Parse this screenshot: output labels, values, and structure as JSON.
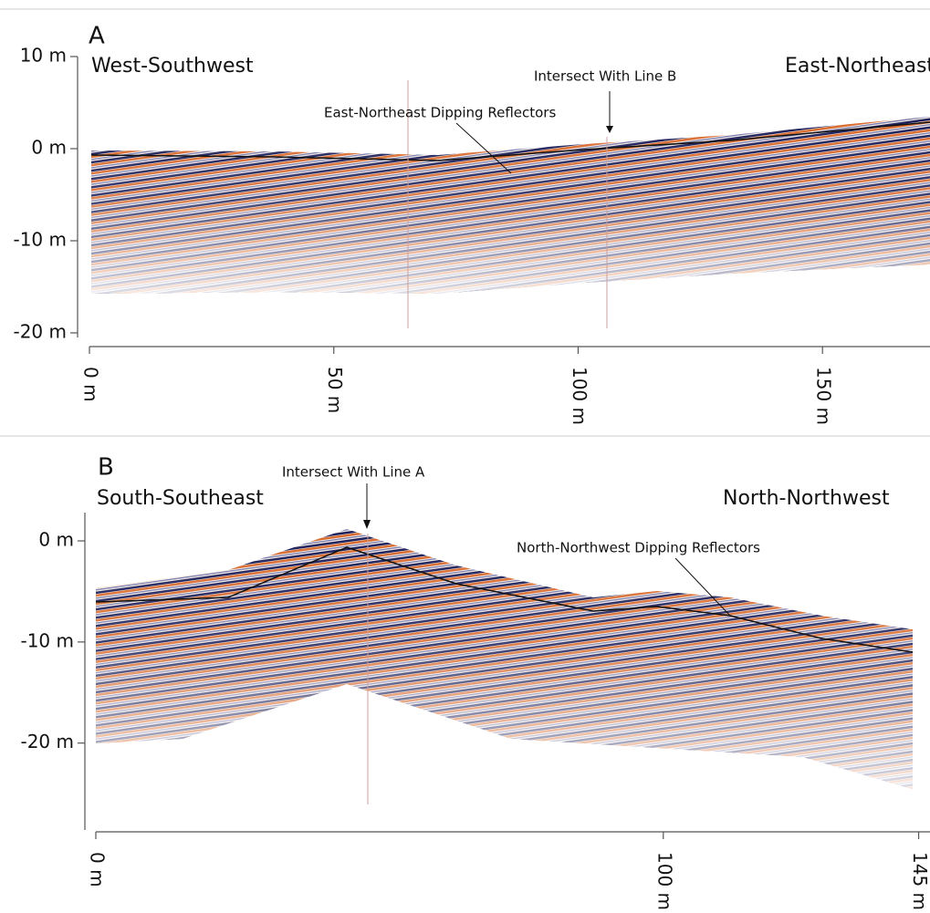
{
  "chart_data": [
    {
      "type": "radargram",
      "panel_label": "A",
      "left_direction": "West-Southwest",
      "right_direction": "East-Northeast",
      "annotations": [
        "Intersect With Line B",
        "East-Northeast Dipping Reflectors"
      ],
      "xlim": [
        0,
        172
      ],
      "ylim": [
        -20.5,
        10
      ],
      "xticks": [
        {
          "value": 0,
          "label": "0 m"
        },
        {
          "value": 50,
          "label": "50 m"
        },
        {
          "value": 100,
          "label": "100 m"
        },
        {
          "value": 150,
          "label": "150 m"
        }
      ],
      "yticks": [
        {
          "value": 10,
          "label": "10 m"
        },
        {
          "value": 0,
          "label": "0 m"
        },
        {
          "value": -10,
          "label": "-10 m"
        },
        {
          "value": -20,
          "label": "-20 m"
        }
      ]
    },
    {
      "type": "radargram",
      "panel_label": "B",
      "left_direction": "South-Southeast",
      "right_direction": "North-Northwest",
      "annotations": [
        "Intersect With Line A",
        "North-Northwest Dipping Reflectors"
      ],
      "xlim": [
        0,
        147
      ],
      "ylim": [
        -28.6,
        2.8
      ],
      "xticks": [
        {
          "value": 0,
          "label": "0 m"
        },
        {
          "value": 100,
          "label": "100 m"
        },
        {
          "value": 145,
          "label": "145 m"
        }
      ],
      "yticks": [
        {
          "value": 0,
          "label": "0 m"
        },
        {
          "value": -10,
          "label": "-10 m"
        },
        {
          "value": -20,
          "label": "-20 m"
        }
      ]
    }
  ]
}
